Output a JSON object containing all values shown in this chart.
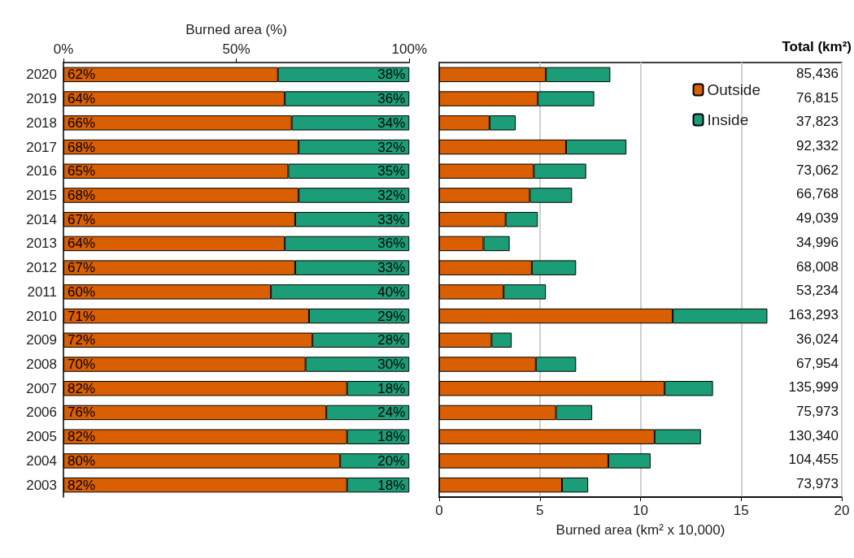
{
  "chart_data": [
    {
      "type": "bar",
      "orientation": "horizontal",
      "stacked": true,
      "xlabel": "Burned area (%)",
      "categories": [
        "2020",
        "2019",
        "2018",
        "2017",
        "2016",
        "2015",
        "2014",
        "2013",
        "2012",
        "2011",
        "2010",
        "2009",
        "2008",
        "2007",
        "2006",
        "2005",
        "2004",
        "2003"
      ],
      "series": [
        {
          "color": "#d95f02",
          "values": [
            62,
            64,
            66,
            68,
            65,
            68,
            67,
            64,
            67,
            60,
            71,
            72,
            70,
            82,
            76,
            82,
            80,
            82
          ],
          "value_labels": [
            "62%",
            "64%",
            "66%",
            "68%",
            "65%",
            "68%",
            "67%",
            "64%",
            "67%",
            "60%",
            "71%",
            "72%",
            "70%",
            "82%",
            "76%",
            "82%",
            "80%",
            "82%"
          ]
        },
        {
          "color": "#1b9e77",
          "values": [
            38,
            36,
            34,
            32,
            35,
            32,
            33,
            36,
            33,
            40,
            29,
            28,
            30,
            18,
            24,
            18,
            20,
            18
          ],
          "value_labels": [
            "38%",
            "36%",
            "34%",
            "32%",
            "35%",
            "32%",
            "33%",
            "36%",
            "33%",
            "40%",
            "29%",
            "28%",
            "30%",
            "18%",
            "24%",
            "18%",
            "20%",
            "18%"
          ]
        }
      ],
      "xlim": [
        0,
        100
      ],
      "xticks": [
        {
          "value": 0,
          "label": "0%"
        },
        {
          "value": 50,
          "label": "50%"
        },
        {
          "value": 100,
          "label": "100%"
        }
      ],
      "legend": false,
      "grid": false
    },
    {
      "type": "bar",
      "orientation": "horizontal",
      "stacked": true,
      "xlabel": "Burned area (km² x 10,000)",
      "categories": [
        "2020",
        "2019",
        "2018",
        "2017",
        "2016",
        "2015",
        "2014",
        "2013",
        "2012",
        "2011",
        "2010",
        "2009",
        "2008",
        "2007",
        "2006",
        "2005",
        "2004",
        "2003"
      ],
      "series": [
        {
          "name": "Outside",
          "color": "#d95f02",
          "values": [
            5.3,
            4.9,
            2.5,
            6.3,
            4.7,
            4.5,
            3.3,
            2.2,
            4.6,
            3.2,
            11.6,
            2.6,
            4.8,
            11.2,
            5.8,
            10.7,
            8.4,
            6.1
          ]
        },
        {
          "name": "Inside",
          "color": "#1b9e77",
          "values": [
            3.2,
            2.8,
            1.3,
            3.0,
            2.6,
            2.1,
            1.6,
            1.3,
            2.2,
            2.1,
            4.7,
            1.0,
            2.0,
            2.4,
            1.8,
            2.3,
            2.1,
            1.3
          ]
        }
      ],
      "annotations": [
        "Total (km²)",
        "85,436",
        "76,815",
        "37,823",
        "92,332",
        "73,062",
        "66,768",
        "49,039",
        "34,996",
        "68,008",
        "53,234",
        "163,293",
        "36,024",
        "67,954",
        "135,999",
        "75,973",
        "130,340",
        "104,455",
        "73,973"
      ],
      "xlim": [
        0,
        20
      ],
      "xticks": [
        0,
        5,
        10,
        15,
        20
      ],
      "tick_labels": "x",
      "grid": "x",
      "legend": "top right"
    }
  ]
}
